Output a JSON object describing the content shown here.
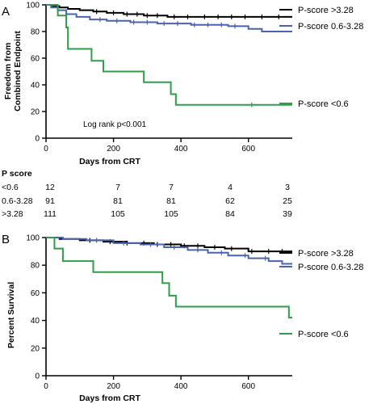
{
  "chart_data": [
    {
      "panel": "A",
      "type": "line",
      "xlabel": "Days from  CRT",
      "ylabel_lines": [
        "Freedom from",
        "Combined Endpoint"
      ],
      "xlim": [
        0,
        730
      ],
      "ylim": [
        0,
        100
      ],
      "xticks": [
        0,
        200,
        400,
        600
      ],
      "yticks": [
        0,
        20,
        40,
        60,
        80,
        100
      ],
      "annotation": "Log rank p<0.001",
      "series": [
        {
          "name": "P-score >3.28",
          "color": "#000000",
          "dashed_tail_from": 620,
          "points": [
            [
              0,
              100
            ],
            [
              20,
              99
            ],
            [
              40,
              98
            ],
            [
              65,
              97
            ],
            [
              100,
              96
            ],
            [
              140,
              95
            ],
            [
              180,
              94
            ],
            [
              230,
              93
            ],
            [
              290,
              92
            ],
            [
              360,
              91
            ],
            [
              450,
              91
            ],
            [
              560,
              91
            ],
            [
              730,
              91
            ]
          ],
          "censors": [
            150,
            200,
            240,
            270,
            300,
            330,
            380,
            420,
            470,
            510,
            550,
            590,
            640,
            690
          ]
        },
        {
          "name": "P-score  0.6-3.28",
          "color": "#4a63b0",
          "dashed_tail_from": 640,
          "points": [
            [
              0,
              100
            ],
            [
              15,
              98
            ],
            [
              35,
              96
            ],
            [
              60,
              93
            ],
            [
              90,
              91
            ],
            [
              130,
              89
            ],
            [
              180,
              88
            ],
            [
              250,
              87
            ],
            [
              330,
              86
            ],
            [
              430,
              85
            ],
            [
              540,
              84
            ],
            [
              600,
              82
            ],
            [
              640,
              80
            ],
            [
              730,
              80
            ]
          ],
          "censors": [
            160,
            210,
            260,
            300,
            350,
            390,
            440,
            480,
            520,
            560
          ]
        },
        {
          "name": "P-score  <0.6",
          "color": "#2e9e4a",
          "dashed_tail_from": null,
          "points": [
            [
              0,
              100
            ],
            [
              35,
              92
            ],
            [
              60,
              83
            ],
            [
              65,
              67
            ],
            [
              135,
              67
            ],
            [
              135,
              58
            ],
            [
              170,
              58
            ],
            [
              170,
              50
            ],
            [
              290,
              50
            ],
            [
              290,
              42
            ],
            [
              370,
              42
            ],
            [
              370,
              33
            ],
            [
              385,
              33
            ],
            [
              385,
              25
            ],
            [
              730,
              25
            ]
          ],
          "censors": [
            610
          ]
        }
      ],
      "risk_table": {
        "header": "P score",
        "timepoints": [
          0,
          180,
          365,
          545,
          730
        ],
        "rows": [
          {
            "label": "<0.6",
            "values": [
              "12",
              "7",
              "7",
              "4",
              "3"
            ]
          },
          {
            "label": "0.6-3.28",
            "values": [
              "91",
              "81",
              "81",
              "62",
              "25"
            ]
          },
          {
            "label": ">3.28",
            "values": [
              "111",
              "105",
              "105",
              "84",
              "39"
            ]
          }
        ]
      }
    },
    {
      "panel": "B",
      "type": "line",
      "xlabel": "Days from  CRT",
      "ylabel_lines": [
        "Percent Survival"
      ],
      "xlim": [
        0,
        730
      ],
      "ylim": [
        0,
        100
      ],
      "xticks": [
        0,
        200,
        400,
        600
      ],
      "yticks": [
        0,
        20,
        40,
        60,
        80,
        100
      ],
      "annotation": "",
      "series": [
        {
          "name": "P-score >3.28",
          "color": "#000000",
          "dashed_tail_from": null,
          "points": [
            [
              0,
              100
            ],
            [
              40,
              99
            ],
            [
              100,
              98
            ],
            [
              170,
              97
            ],
            [
              240,
              96
            ],
            [
              320,
              95
            ],
            [
              400,
              94
            ],
            [
              470,
              93
            ],
            [
              530,
              92
            ],
            [
              600,
              90
            ],
            [
              730,
              90
            ]
          ],
          "censors": [
            130,
            190,
            240,
            290,
            330,
            370,
            410,
            450,
            500,
            550,
            610,
            660,
            700
          ]
        },
        {
          "name": "P-score  0.6-3.28",
          "color": "#4a63b0",
          "dashed_tail_from": null,
          "points": [
            [
              0,
              100
            ],
            [
              50,
              99
            ],
            [
              120,
              98
            ],
            [
              200,
              96
            ],
            [
              280,
              95
            ],
            [
              350,
              93
            ],
            [
              420,
              91
            ],
            [
              480,
              89
            ],
            [
              540,
              87
            ],
            [
              600,
              85
            ],
            [
              660,
              83
            ],
            [
              700,
              81
            ],
            [
              730,
              81
            ]
          ],
          "censors": [
            150,
            230,
            310,
            380,
            450,
            520,
            590,
            650
          ]
        },
        {
          "name": "P-score  <0.6",
          "color": "#2e9e4a",
          "dashed_tail_from": null,
          "points": [
            [
              0,
              100
            ],
            [
              25,
              92
            ],
            [
              25,
              92
            ],
            [
              50,
              92
            ],
            [
              50,
              83
            ],
            [
              140,
              83
            ],
            [
              140,
              75
            ],
            [
              215,
              75
            ],
            [
              215,
              75
            ],
            [
              345,
              75
            ],
            [
              345,
              67
            ],
            [
              365,
              67
            ],
            [
              365,
              58
            ],
            [
              385,
              58
            ],
            [
              385,
              50
            ],
            [
              720,
              50
            ],
            [
              720,
              42
            ],
            [
              730,
              42
            ]
          ],
          "censors": []
        }
      ]
    }
  ]
}
